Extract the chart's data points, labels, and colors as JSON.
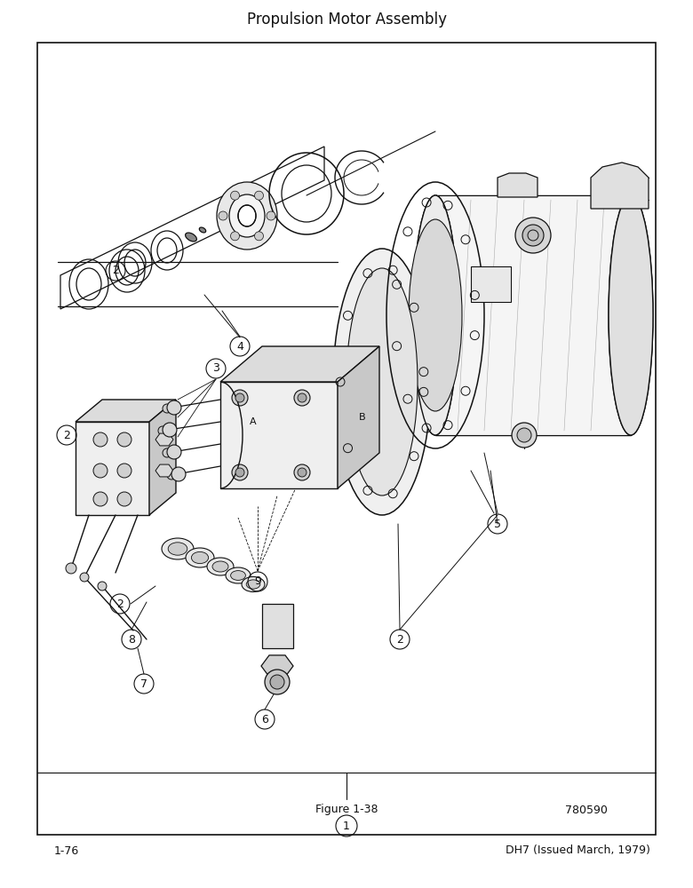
{
  "title": "Propulsion Motor Assembly",
  "figure_label": "Figure 1-38",
  "part_number": "780590",
  "page_number": "1-76",
  "issued": "DH7 (Issued March, 1979)",
  "bg_color": "#ffffff",
  "line_color": "#111111",
  "title_fontsize": 12,
  "footer_fontsize": 9,
  "annot_fontsize": 9
}
